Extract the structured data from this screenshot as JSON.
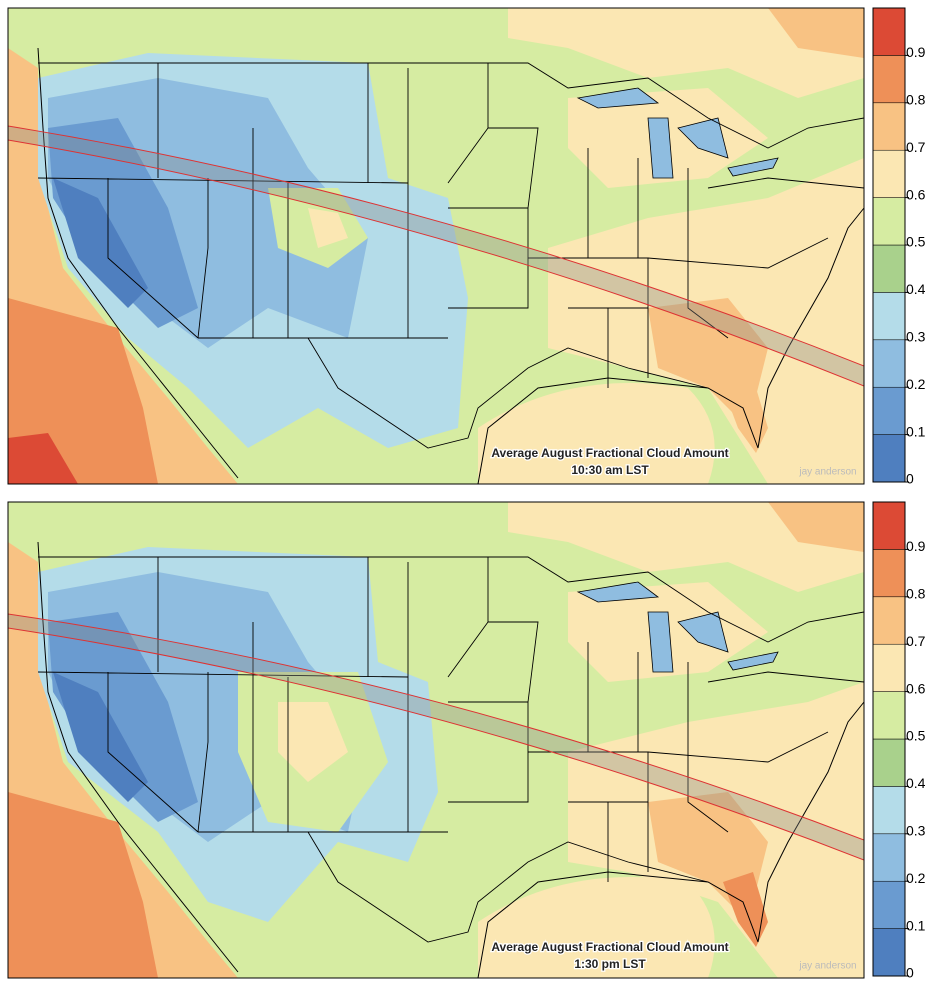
{
  "panels": [
    {
      "title": "Average August Fractional Cloud Amount",
      "subtitle": "10:30 am LST",
      "credit": "jay anderson",
      "colorbar": {
        "range": [
          0,
          1
        ],
        "ticks": [
          0,
          0.1,
          0.2,
          0.3,
          0.4,
          0.5,
          0.6,
          0.7,
          0.8,
          0.9
        ],
        "colors": [
          "#4f7fbf",
          "#6a9bd0",
          "#8fbde0",
          "#b4dce9",
          "#a9d18c",
          "#d6eca2",
          "#fbe7b3",
          "#f8c283",
          "#ee9058",
          "#dc4a35"
        ]
      }
    },
    {
      "title": "Average August Fractional Cloud Amount",
      "subtitle": "1:30 pm LST",
      "credit": "jay anderson",
      "colorbar": {
        "range": [
          0,
          1
        ],
        "ticks": [
          0,
          0.1,
          0.2,
          0.3,
          0.4,
          0.5,
          0.6,
          0.7,
          0.8,
          0.9
        ],
        "colors": [
          "#4f7fbf",
          "#6a9bd0",
          "#8fbde0",
          "#b4dce9",
          "#a9d18c",
          "#d6eca2",
          "#fbe7b3",
          "#f8c283",
          "#ee9058",
          "#dc4a35"
        ]
      }
    }
  ]
}
